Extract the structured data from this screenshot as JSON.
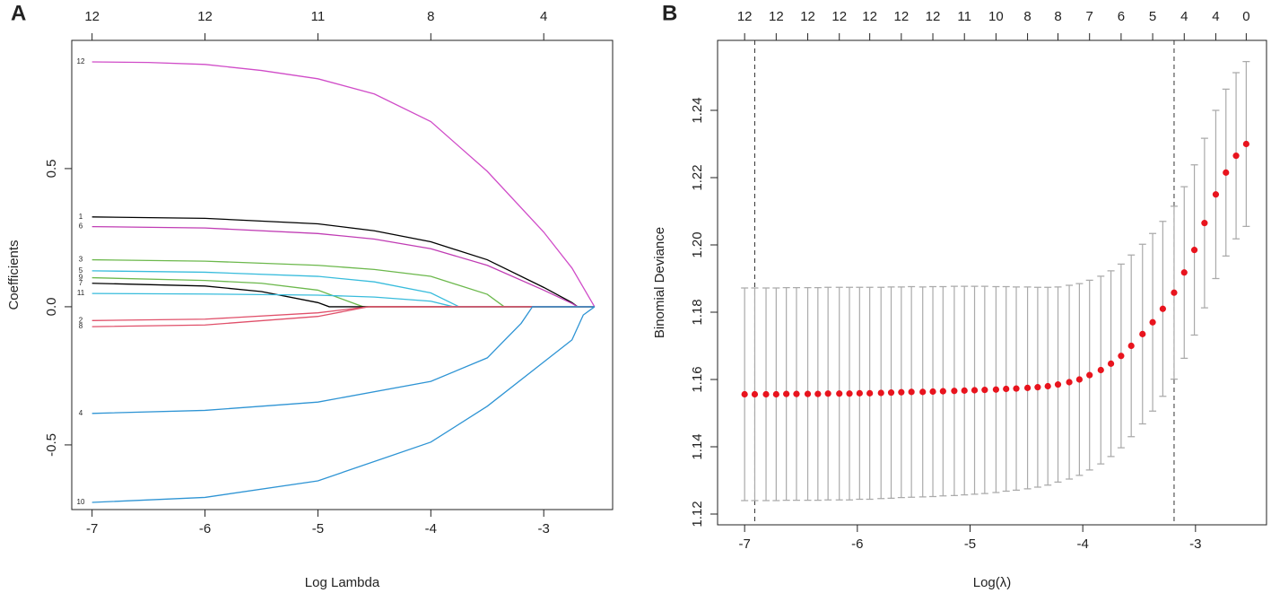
{
  "chart_data": [
    {
      "type": "line",
      "panel_label": "A",
      "xlabel": "Log Lambda",
      "ylabel": "Coefficients",
      "xlim": [
        -7.18,
        -2.39
      ],
      "ylim": [
        -0.734,
        0.964
      ],
      "xticks": [
        -7,
        -6,
        -5,
        -4,
        -3
      ],
      "yticks": [
        -0.5,
        {
          "value": 0,
          "label": "0.0"
        },
        0.5
      ],
      "top_ticks": [
        {
          "value": -7,
          "label": "12"
        },
        {
          "value": -6,
          "label": "12"
        },
        {
          "value": -5,
          "label": "11"
        },
        {
          "value": -4,
          "label": "8"
        },
        {
          "value": -3,
          "label": "4"
        }
      ],
      "series": [
        {
          "name": "12",
          "color": "#d04cc8",
          "x": [
            -7,
            -6.5,
            -6,
            -5.5,
            -5,
            -4.5,
            -4,
            -3.5,
            -3,
            -2.75,
            -2.55
          ],
          "values": [
            0.886,
            0.884,
            0.877,
            0.855,
            0.825,
            0.77,
            0.67,
            0.49,
            0.27,
            0.14,
            0
          ]
        },
        {
          "name": "1",
          "color": "#000000",
          "x": [
            -7,
            -6,
            -5,
            -4.5,
            -4,
            -3.5,
            -3,
            -2.75,
            -2.7,
            -2.55
          ],
          "values": [
            0.325,
            0.32,
            0.3,
            0.275,
            0.235,
            0.17,
            0.07,
            0.015,
            0,
            0
          ]
        },
        {
          "name": "6",
          "color": "#c03cb4",
          "x": [
            -7,
            -6,
            -5,
            -4.5,
            -4,
            -3.5,
            -3,
            -2.75,
            -2.7,
            -2.55
          ],
          "values": [
            0.29,
            0.285,
            0.265,
            0.245,
            0.21,
            0.15,
            0.06,
            0.012,
            0,
            0
          ]
        },
        {
          "name": "3",
          "color": "#6cb84c",
          "x": [
            -7,
            -6,
            -5,
            -4.5,
            -4,
            -3.5,
            -3.35,
            -2.55
          ],
          "values": [
            0.17,
            0.165,
            0.15,
            0.135,
            0.11,
            0.045,
            0,
            0
          ]
        },
        {
          "name": "5",
          "color": "#38bcdc",
          "x": [
            -7,
            -6,
            -5,
            -4.5,
            -4,
            -3.75,
            -2.55
          ],
          "values": [
            0.13,
            0.125,
            0.11,
            0.09,
            0.05,
            0,
            0
          ]
        },
        {
          "name": "9",
          "color": "#6cb84c",
          "x": [
            -7,
            -6,
            -5.5,
            -5,
            -4.6,
            -2.55
          ],
          "values": [
            0.105,
            0.095,
            0.085,
            0.06,
            0,
            0
          ]
        },
        {
          "name": "7",
          "color": "#000000",
          "x": [
            -7,
            -6,
            -5.5,
            -5,
            -4.9,
            -2.55
          ],
          "values": [
            0.085,
            0.075,
            0.055,
            0.015,
            0,
            0
          ]
        },
        {
          "name": "11",
          "color": "#38bcdc",
          "x": [
            -7,
            -6,
            -5,
            -4.5,
            -4,
            -3.8,
            -2.55
          ],
          "values": [
            0.048,
            0.046,
            0.042,
            0.035,
            0.02,
            0,
            0
          ]
        },
        {
          "name": "2",
          "color": "#e0506a",
          "x": [
            -7,
            -6,
            -5,
            -4.55,
            -2.55
          ],
          "values": [
            -0.05,
            -0.045,
            -0.022,
            0,
            0
          ]
        },
        {
          "name": "8",
          "color": "#e0506a",
          "x": [
            -7,
            -6,
            -5,
            -4.55,
            -2.55
          ],
          "values": [
            -0.072,
            -0.066,
            -0.035,
            0,
            0
          ]
        },
        {
          "name": "4",
          "color": "#2e94d4",
          "x": [
            -7,
            -6,
            -5,
            -4,
            -3.5,
            -3.2,
            -3.1,
            -2.55
          ],
          "values": [
            -0.386,
            -0.375,
            -0.345,
            -0.27,
            -0.185,
            -0.06,
            0,
            0
          ]
        },
        {
          "name": "10",
          "color": "#2e94d4",
          "x": [
            -7,
            -6,
            -5,
            -4,
            -3.5,
            -3,
            -2.75,
            -2.65,
            -2.55
          ],
          "values": [
            -0.708,
            -0.69,
            -0.63,
            -0.49,
            -0.36,
            -0.2,
            -0.12,
            -0.03,
            0
          ]
        }
      ]
    },
    {
      "type": "scatter",
      "panel_label": "B",
      "xlabel": "Log(λ)",
      "ylabel": "Binomial Deviance",
      "xlim": [
        -7.24,
        -2.37
      ],
      "ylim": [
        1.1168,
        1.2608
      ],
      "xticks": [
        -7,
        -6,
        -5,
        -4,
        -3
      ],
      "yticks": [
        1.12,
        1.14,
        1.16,
        1.18,
        {
          "value": 1.2,
          "label": "1.20"
        },
        1.22,
        1.24
      ],
      "top_ticks": [
        {
          "value": -7,
          "label": "12"
        },
        {
          "value": -6.72,
          "label": "12"
        },
        {
          "value": -6.44,
          "label": "12"
        },
        {
          "value": -6.16,
          "label": "12"
        },
        {
          "value": -5.89,
          "label": "12"
        },
        {
          "value": -5.61,
          "label": "12"
        },
        {
          "value": -5.33,
          "label": "12"
        },
        {
          "value": -5.05,
          "label": "11"
        },
        {
          "value": -4.77,
          "label": "10"
        },
        {
          "value": -4.49,
          "label": "8"
        },
        {
          "value": -4.22,
          "label": "8"
        },
        {
          "value": -3.94,
          "label": "7"
        },
        {
          "value": -3.66,
          "label": "6"
        },
        {
          "value": -3.38,
          "label": "5"
        },
        {
          "value": -3.1,
          "label": "4"
        },
        {
          "value": -2.82,
          "label": "4"
        },
        {
          "value": -2.55,
          "label": "0"
        }
      ],
      "color": "#e8141e",
      "error_color": "#aaaaaa",
      "vlines": [
        -6.91,
        -3.19
      ],
      "x": [
        -7,
        -6.91,
        -6.81,
        -6.72,
        -6.63,
        -6.54,
        -6.44,
        -6.35,
        -6.26,
        -6.16,
        -6.07,
        -5.98,
        -5.89,
        -5.79,
        -5.7,
        -5.61,
        -5.52,
        -5.42,
        -5.33,
        -5.24,
        -5.14,
        -5.05,
        -4.96,
        -4.87,
        -4.77,
        -4.68,
        -4.59,
        -4.49,
        -4.4,
        -4.31,
        -4.22,
        -4.12,
        -4.03,
        -3.94,
        -3.84,
        -3.75,
        -3.66,
        -3.57,
        -3.47,
        -3.38,
        -3.29,
        -3.19,
        -3.1,
        -3.01,
        -2.92,
        -2.82,
        -2.73,
        -2.64,
        -2.55
      ],
      "values": [
        1.1556,
        1.1556,
        1.1556,
        1.1556,
        1.1557,
        1.1557,
        1.1557,
        1.1557,
        1.1558,
        1.1558,
        1.1558,
        1.1559,
        1.1559,
        1.156,
        1.1561,
        1.1562,
        1.1563,
        1.1563,
        1.1564,
        1.1565,
        1.1566,
        1.1567,
        1.1568,
        1.1569,
        1.157,
        1.1572,
        1.1573,
        1.1575,
        1.1577,
        1.158,
        1.1585,
        1.1592,
        1.16,
        1.1613,
        1.1628,
        1.1647,
        1.167,
        1.17,
        1.1735,
        1.177,
        1.181,
        1.1858,
        1.1918,
        1.1985,
        1.2065,
        1.215,
        1.2215,
        1.2265,
        1.23
      ],
      "errors": [
        0.0316,
        0.0316,
        0.0316,
        0.0316,
        0.0316,
        0.0316,
        0.0316,
        0.0316,
        0.0316,
        0.0316,
        0.0316,
        0.0315,
        0.0315,
        0.0314,
        0.0314,
        0.0313,
        0.0313,
        0.0312,
        0.0312,
        0.0311,
        0.0311,
        0.031,
        0.0309,
        0.0308,
        0.0306,
        0.0304,
        0.0302,
        0.03,
        0.0297,
        0.0294,
        0.029,
        0.0288,
        0.0285,
        0.0282,
        0.0279,
        0.0276,
        0.0273,
        0.027,
        0.0267,
        0.0264,
        0.026,
        0.0257,
        0.0255,
        0.0253,
        0.0252,
        0.025,
        0.0248,
        0.0247,
        0.0245
      ]
    }
  ]
}
